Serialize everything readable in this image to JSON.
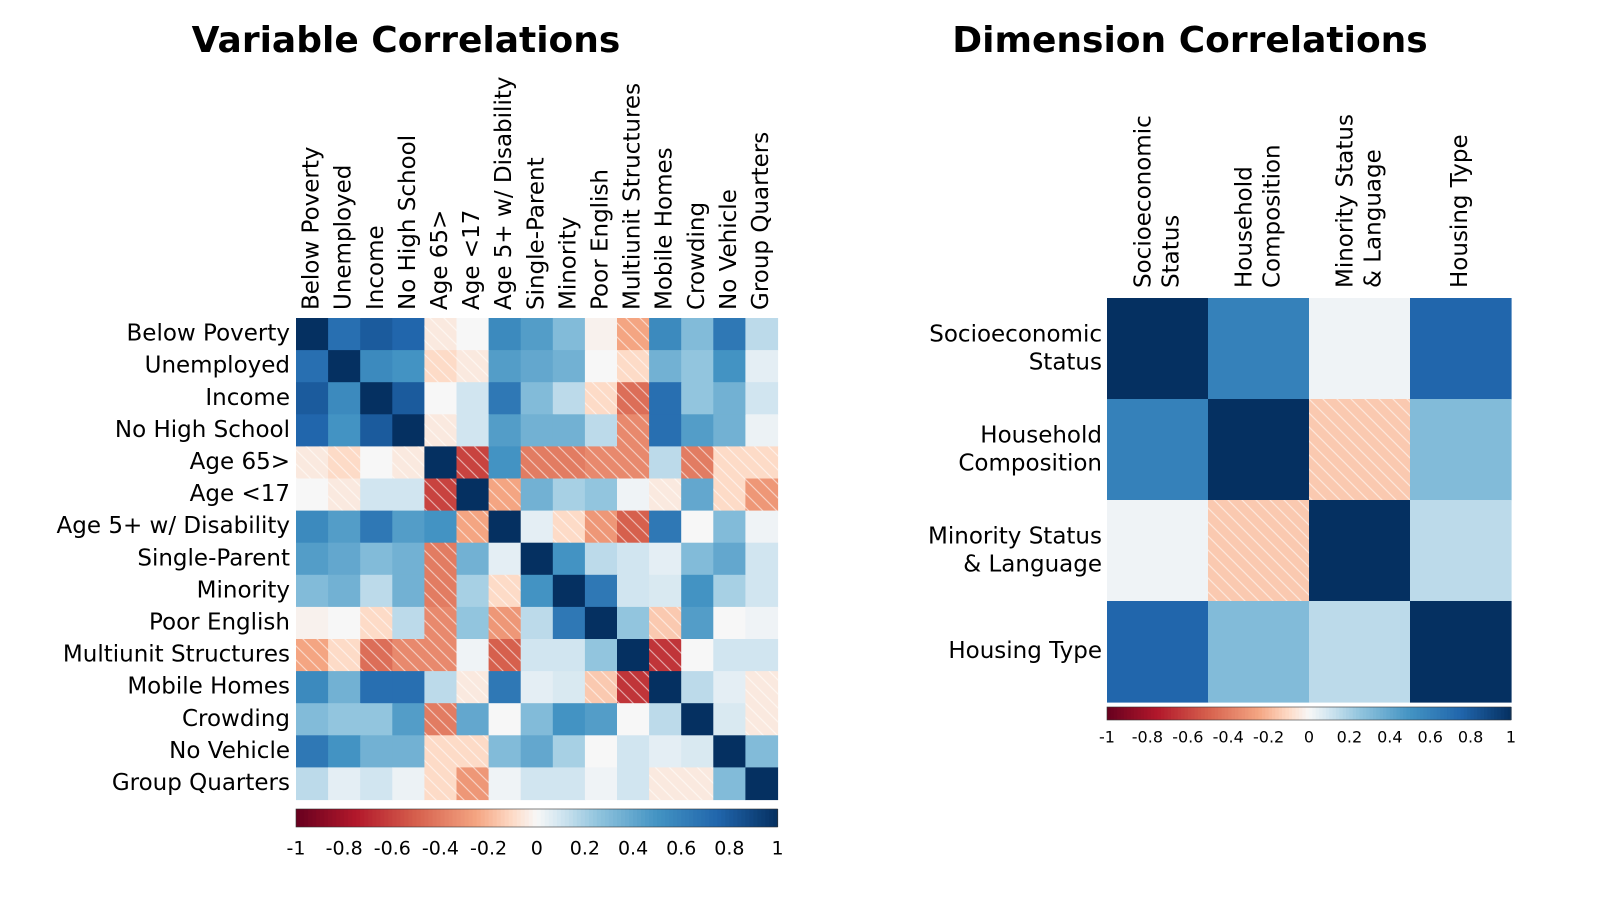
{
  "chart_data": [
    {
      "type": "heatmap",
      "title": "Variable Correlations",
      "variables": [
        "Below Poverty",
        "Unemployed",
        "Income",
        "No High School",
        "Age 65>",
        "Age <17",
        "Age 5+ w/ Disability",
        "Single-Parent",
        "Minority",
        "Poor English",
        "Multiunit Structures",
        "Mobile Homes",
        "Crowding",
        "No Vehicle",
        "Group Quarters"
      ],
      "row_labels": [
        [
          "Below Poverty"
        ],
        [
          "Unemployed"
        ],
        [
          "Income"
        ],
        [
          "No High School"
        ],
        [
          "Age 65>"
        ],
        [
          "Age <17"
        ],
        [
          "Age 5+ w/ Disability"
        ],
        [
          "Single-Parent"
        ],
        [
          "Minority"
        ],
        [
          "Poor English"
        ],
        [
          "Multiunit Structures"
        ],
        [
          "Mobile Homes"
        ],
        [
          "Crowding"
        ],
        [
          "No Vehicle"
        ],
        [
          "Group Quarters"
        ]
      ],
      "col_labels": [
        [
          "Below Poverty"
        ],
        [
          "Unemployed"
        ],
        [
          "Income"
        ],
        [
          "No High School"
        ],
        [
          "Age 65>"
        ],
        [
          "Age <17"
        ],
        [
          "Age 5+ w/ Disability"
        ],
        [
          "Single-Parent"
        ],
        [
          "Minority"
        ],
        [
          "Poor English"
        ],
        [
          "Multiunit Structures"
        ],
        [
          "Mobile Homes"
        ],
        [
          "Crowding"
        ],
        [
          "No Vehicle"
        ],
        [
          "Group Quarters"
        ]
      ],
      "matrix": [
        [
          1,
          0.7,
          0.8,
          0.75,
          -0.05,
          0,
          0.55,
          0.45,
          0.3,
          -0.02,
          -0.25,
          0.55,
          0.3,
          0.65,
          0.15
        ],
        [
          0.7,
          1,
          0.55,
          0.5,
          -0.1,
          -0.05,
          0.45,
          0.4,
          0.35,
          0,
          -0.1,
          0.35,
          0.25,
          0.5,
          0.05
        ],
        [
          0.8,
          0.55,
          1,
          0.8,
          0,
          0.1,
          0.65,
          0.3,
          0.15,
          -0.1,
          -0.45,
          0.7,
          0.25,
          0.35,
          0.1
        ],
        [
          0.75,
          0.5,
          0.8,
          1,
          -0.05,
          0.1,
          0.45,
          0.35,
          0.35,
          0.15,
          -0.35,
          0.7,
          0.45,
          0.35,
          0.03
        ],
        [
          -0.05,
          -0.1,
          0,
          -0.05,
          1,
          -0.6,
          0.5,
          -0.4,
          -0.4,
          -0.35,
          -0.35,
          0.15,
          -0.4,
          -0.1,
          -0.1
        ],
        [
          0,
          -0.05,
          0.1,
          0.1,
          -0.6,
          1,
          -0.25,
          0.35,
          0.2,
          0.25,
          0.02,
          -0.05,
          0.4,
          -0.1,
          -0.3
        ],
        [
          0.55,
          0.45,
          0.65,
          0.45,
          0.5,
          -0.25,
          1,
          0.05,
          -0.1,
          -0.3,
          -0.5,
          0.65,
          0,
          0.3,
          0.02
        ],
        [
          0.45,
          0.4,
          0.3,
          0.35,
          -0.4,
          0.35,
          0.05,
          1,
          0.5,
          0.15,
          0.1,
          0.05,
          0.3,
          0.4,
          0.1
        ],
        [
          0.3,
          0.35,
          0.15,
          0.35,
          -0.4,
          0.2,
          -0.1,
          0.5,
          1,
          0.65,
          0.1,
          0.08,
          0.5,
          0.2,
          0.1
        ],
        [
          -0.02,
          0,
          -0.1,
          0.15,
          -0.35,
          0.25,
          -0.3,
          0.15,
          0.65,
          1,
          0.25,
          -0.15,
          0.45,
          0,
          0.02
        ],
        [
          -0.25,
          -0.1,
          -0.45,
          -0.35,
          -0.35,
          0.02,
          -0.5,
          0.1,
          0.1,
          0.25,
          1,
          -0.65,
          0,
          0.1,
          0.1
        ],
        [
          0.55,
          0.35,
          0.7,
          0.7,
          0.15,
          -0.05,
          0.65,
          0.05,
          0.08,
          -0.15,
          -0.65,
          1,
          0.15,
          0.05,
          -0.05
        ],
        [
          0.3,
          0.25,
          0.25,
          0.45,
          -0.4,
          0.4,
          0,
          0.3,
          0.5,
          0.45,
          0,
          0.15,
          1,
          0.08,
          -0.05
        ],
        [
          0.65,
          0.5,
          0.35,
          0.35,
          -0.1,
          -0.1,
          0.3,
          0.4,
          0.2,
          0,
          0.1,
          0.05,
          0.08,
          1,
          0.3
        ],
        [
          0.15,
          0.05,
          0.1,
          0.03,
          -0.1,
          -0.3,
          0.02,
          0.1,
          0.1,
          0.02,
          0.1,
          -0.05,
          -0.05,
          0.3,
          1
        ]
      ],
      "colorbar": {
        "min": -1,
        "max": 1,
        "ticks": [
          "-1",
          "-0.8",
          "-0.6",
          "-0.4",
          "-0.2",
          "0",
          "0.2",
          "0.4",
          "0.6",
          "0.8",
          "1"
        ]
      },
      "negative_cells_hatched": true
    },
    {
      "type": "heatmap",
      "title": "Dimension Correlations",
      "variables": [
        "Socioeconomic Status",
        "Household Composition",
        "Minority Status & Language",
        "Housing Type"
      ],
      "row_labels": [
        [
          "Socioeconomic",
          "Status"
        ],
        [
          "Household",
          "Composition"
        ],
        [
          "Minority Status",
          "& Language"
        ],
        [
          "Housing Type"
        ]
      ],
      "col_labels": [
        [
          "Socioeconomic",
          "Status"
        ],
        [
          "Household",
          "Composition"
        ],
        [
          "Minority Status",
          "& Language"
        ],
        [
          "Housing Type"
        ]
      ],
      "matrix": [
        [
          1,
          0.6,
          0.02,
          0.75
        ],
        [
          0.6,
          1,
          -0.15,
          0.3
        ],
        [
          0.02,
          -0.15,
          1,
          0.15
        ],
        [
          0.75,
          0.3,
          0.15,
          1
        ]
      ],
      "colorbar": {
        "min": -1,
        "max": 1,
        "ticks": [
          "-1",
          "-0.8",
          "-0.6",
          "-0.4",
          "-0.2",
          "0",
          "0.2",
          "0.4",
          "0.6",
          "0.8",
          "1"
        ]
      },
      "negative_cells_hatched": true
    }
  ]
}
